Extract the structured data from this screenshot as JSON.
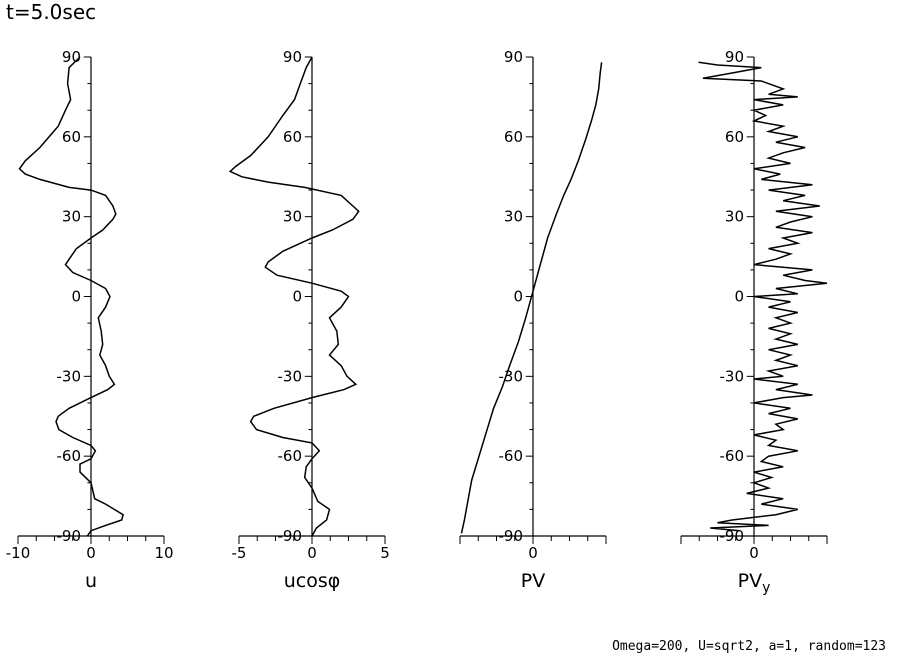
{
  "title": "t=5.0sec",
  "footer": "Omega=200, U=sqrt2, a=1, random=123",
  "chart_data": [
    {
      "type": "line",
      "xlabel": "u",
      "xlim": [
        -10,
        10
      ],
      "xticks": [
        "-10",
        "0",
        "10"
      ],
      "ylim": [
        -90,
        90
      ],
      "yticks": [
        "-90",
        "-60",
        "-30",
        "0",
        "30",
        "60",
        "90"
      ],
      "series": [
        {
          "points": [
            [
              -1.5,
              90
            ],
            [
              -3,
              86
            ],
            [
              -3.2,
              80
            ],
            [
              -2.8,
              74
            ],
            [
              -3.5,
              70
            ],
            [
              -4.5,
              64
            ],
            [
              -7,
              56
            ],
            [
              -9,
              51
            ],
            [
              -9.8,
              48
            ],
            [
              -9,
              46
            ],
            [
              -7,
              44
            ],
            [
              -3,
              41
            ],
            [
              0,
              40
            ],
            [
              2,
              38
            ],
            [
              3,
              34
            ],
            [
              3.4,
              31
            ],
            [
              3,
              29
            ],
            [
              1.6,
              25
            ],
            [
              0,
              22
            ],
            [
              -2,
              18
            ],
            [
              -3,
              14
            ],
            [
              -3.5,
              12
            ],
            [
              -2.5,
              9
            ],
            [
              0,
              6
            ],
            [
              2,
              3
            ],
            [
              2.6,
              0
            ],
            [
              2,
              -4
            ],
            [
              1,
              -8
            ],
            [
              1.4,
              -13
            ],
            [
              1.6,
              -18
            ],
            [
              1.2,
              -22
            ],
            [
              2,
              -26
            ],
            [
              2.5,
              -30
            ],
            [
              3.2,
              -33
            ],
            [
              2.3,
              -35
            ],
            [
              0,
              -38
            ],
            [
              -3,
              -42
            ],
            [
              -4.5,
              -45
            ],
            [
              -4.8,
              -47
            ],
            [
              -4.4,
              -50
            ],
            [
              -2.5,
              -53
            ],
            [
              0,
              -56
            ],
            [
              0.6,
              -58
            ],
            [
              0,
              -61
            ],
            [
              -1.5,
              -63
            ],
            [
              -1.5,
              -66
            ],
            [
              0,
              -70
            ],
            [
              0.5,
              -76
            ],
            [
              2,
              -78
            ],
            [
              4.4,
              -82
            ],
            [
              4.2,
              -84
            ],
            [
              2,
              -86
            ],
            [
              0,
              -88
            ],
            [
              -0.5,
              -90
            ]
          ]
        }
      ]
    },
    {
      "type": "line",
      "xlabel": "ucosφ",
      "xlim": [
        -5,
        5
      ],
      "xticks": [
        "-5",
        "0",
        "5"
      ],
      "ylim": [
        -90,
        90
      ],
      "yticks": [
        "-90",
        "-60",
        "-30",
        "0",
        "30",
        "60",
        "90"
      ],
      "series": [
        {
          "points": [
            [
              0,
              90
            ],
            [
              -0.4,
              86
            ],
            [
              -0.8,
              80
            ],
            [
              -1.2,
              74
            ],
            [
              -2,
              68
            ],
            [
              -3,
              60
            ],
            [
              -4.2,
              53
            ],
            [
              -5.2,
              49
            ],
            [
              -5.6,
              47
            ],
            [
              -4.8,
              45
            ],
            [
              -3,
              43
            ],
            [
              -0.5,
              41
            ],
            [
              2,
              38
            ],
            [
              2.8,
              34
            ],
            [
              3.2,
              32
            ],
            [
              2.8,
              29
            ],
            [
              1.4,
              25
            ],
            [
              0,
              22
            ],
            [
              -2,
              17
            ],
            [
              -3,
              13
            ],
            [
              -3.2,
              11
            ],
            [
              -2.4,
              8
            ],
            [
              0,
              5
            ],
            [
              2,
              2
            ],
            [
              2.5,
              0
            ],
            [
              2,
              -4
            ],
            [
              1.2,
              -8
            ],
            [
              1.7,
              -13
            ],
            [
              1.8,
              -18
            ],
            [
              1.2,
              -22
            ],
            [
              2,
              -26
            ],
            [
              2.4,
              -30
            ],
            [
              3,
              -33
            ],
            [
              2.2,
              -35
            ],
            [
              0,
              -38
            ],
            [
              -2.6,
              -42
            ],
            [
              -4,
              -45
            ],
            [
              -4.2,
              -47
            ],
            [
              -3.8,
              -50
            ],
            [
              -2,
              -53
            ],
            [
              0,
              -55
            ],
            [
              0.5,
              -58
            ],
            [
              0,
              -61
            ],
            [
              -0.4,
              -64
            ],
            [
              -0.5,
              -68
            ],
            [
              0,
              -72
            ],
            [
              0.4,
              -77
            ],
            [
              1.2,
              -80
            ],
            [
              1,
              -84
            ],
            [
              0.3,
              -87
            ],
            [
              0,
              -90
            ]
          ]
        }
      ]
    },
    {
      "type": "line",
      "xlabel": "PV",
      "xlim": [
        -5,
        5
      ],
      "xticks": [
        "0"
      ],
      "ylim": [
        -90,
        90
      ],
      "yticks": [
        "-90",
        "-60",
        "-30",
        "0",
        "30",
        "60",
        "90"
      ],
      "series": [
        {
          "points": [
            [
              4.7,
              88
            ],
            [
              4.6,
              84
            ],
            [
              4.5,
              78
            ],
            [
              4.3,
              72
            ],
            [
              4,
              66
            ],
            [
              3.6,
              59
            ],
            [
              3.1,
              51
            ],
            [
              2.6,
              44
            ],
            [
              2.1,
              38
            ],
            [
              1.6,
              31
            ],
            [
              1,
              22
            ],
            [
              0.5,
              12
            ],
            [
              0,
              2
            ],
            [
              -0.5,
              -8
            ],
            [
              -1,
              -17
            ],
            [
              -1.6,
              -26
            ],
            [
              -2.1,
              -34
            ],
            [
              -2.7,
              -42
            ],
            [
              -3.2,
              -51
            ],
            [
              -3.7,
              -60
            ],
            [
              -4.2,
              -69
            ],
            [
              -4.5,
              -78
            ],
            [
              -4.7,
              -84
            ],
            [
              -4.9,
              -89
            ]
          ]
        }
      ]
    },
    {
      "type": "line",
      "xlabel": "PVy",
      "xlim": [
        -5,
        5
      ],
      "xticks": [
        "0"
      ],
      "ylim": [
        -90,
        90
      ],
      "yticks": [
        "-90",
        "-60",
        "-30",
        "0",
        "30",
        "60",
        "90"
      ],
      "series": [
        {
          "points": [
            [
              -3.8,
              88
            ],
            [
              -2.5,
              87
            ],
            [
              0.5,
              86
            ],
            [
              -1.5,
              84
            ],
            [
              -3.5,
              82
            ],
            [
              0.5,
              81
            ],
            [
              2,
              78
            ],
            [
              1,
              76
            ],
            [
              3,
              75
            ],
            [
              0,
              74
            ],
            [
              2,
              72
            ],
            [
              0,
              70
            ],
            [
              0.8,
              68
            ],
            [
              0,
              66
            ],
            [
              2,
              64
            ],
            [
              1,
              62
            ],
            [
              3,
              60
            ],
            [
              1.5,
              58
            ],
            [
              3.5,
              56
            ],
            [
              2,
              54
            ],
            [
              1,
              52
            ],
            [
              2.5,
              50
            ],
            [
              0,
              48
            ],
            [
              1.8,
              46
            ],
            [
              0.5,
              44
            ],
            [
              4,
              42
            ],
            [
              1,
              40
            ],
            [
              3.5,
              38
            ],
            [
              2,
              36
            ],
            [
              4.5,
              34
            ],
            [
              1.5,
              32
            ],
            [
              4,
              30
            ],
            [
              2.5,
              28
            ],
            [
              1.5,
              26
            ],
            [
              4,
              24
            ],
            [
              2,
              22
            ],
            [
              3,
              20
            ],
            [
              1,
              18
            ],
            [
              2.5,
              16
            ],
            [
              1.5,
              14
            ],
            [
              0,
              12
            ],
            [
              4,
              10
            ],
            [
              2,
              8
            ],
            [
              3.5,
              6
            ],
            [
              5,
              5
            ],
            [
              1.5,
              3
            ],
            [
              3,
              1
            ],
            [
              0,
              0
            ],
            [
              2.5,
              -2
            ],
            [
              1,
              -4
            ],
            [
              3,
              -6
            ],
            [
              1.5,
              -8
            ],
            [
              2.5,
              -10
            ],
            [
              1,
              -12
            ],
            [
              2.5,
              -14
            ],
            [
              1.5,
              -16
            ],
            [
              3,
              -18
            ],
            [
              1,
              -20
            ],
            [
              2.5,
              -22
            ],
            [
              1.5,
              -24
            ],
            [
              3,
              -26
            ],
            [
              1,
              -28
            ],
            [
              2,
              -30
            ],
            [
              0,
              -31
            ],
            [
              3,
              -33
            ],
            [
              1.5,
              -35
            ],
            [
              4,
              -37
            ],
            [
              2,
              -38
            ],
            [
              0,
              -40
            ],
            [
              2.5,
              -42
            ],
            [
              1,
              -44
            ],
            [
              3,
              -46
            ],
            [
              1.5,
              -48
            ],
            [
              2,
              -50
            ],
            [
              0,
              -52
            ],
            [
              1.5,
              -54
            ],
            [
              1,
              -56
            ],
            [
              3,
              -58
            ],
            [
              1,
              -60
            ],
            [
              0.5,
              -62
            ],
            [
              2,
              -64
            ],
            [
              0,
              -66
            ],
            [
              1.2,
              -68
            ],
            [
              0,
              -70
            ],
            [
              1,
              -72
            ],
            [
              -0.5,
              -74
            ],
            [
              2,
              -76
            ],
            [
              0.5,
              -78
            ],
            [
              3,
              -80
            ],
            [
              1.5,
              -82
            ],
            [
              -1.5,
              -84
            ],
            [
              -2.5,
              -85
            ],
            [
              1,
              -86
            ],
            [
              -3,
              -87
            ],
            [
              -1,
              -88
            ]
          ]
        }
      ]
    }
  ]
}
